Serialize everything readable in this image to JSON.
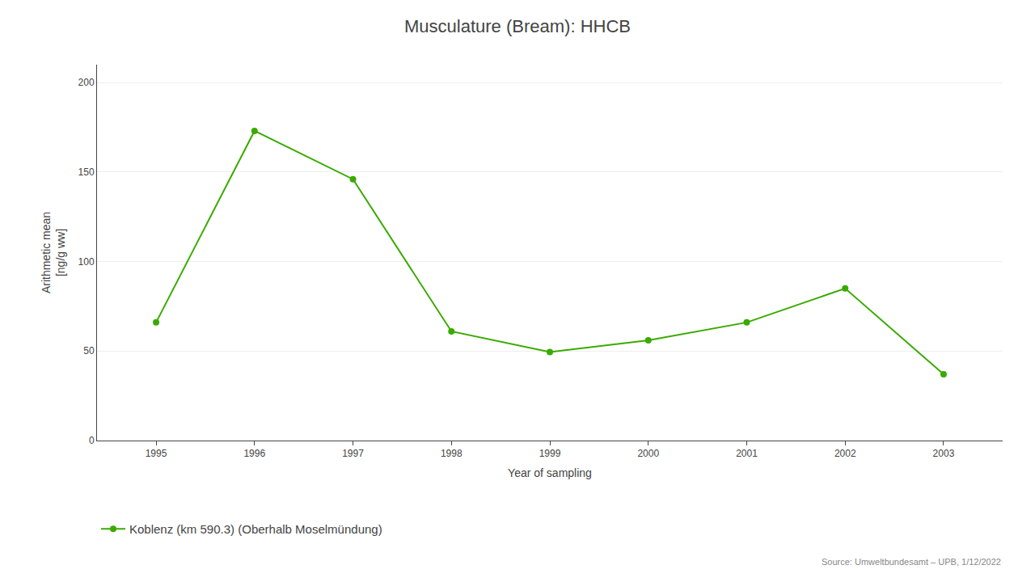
{
  "chart_data": {
    "type": "line",
    "title": "Musculature (Bream): HHCB",
    "xlabel": "Year of sampling",
    "ylabel": "Arithmetic mean\n[ng/g ww]",
    "x": [
      1995,
      1996,
      1997,
      1998,
      1999,
      2000,
      2001,
      2002,
      2003
    ],
    "series": [
      {
        "name": "Koblenz (km 590.3) (Oberhalb Moselmündung)",
        "color": "#3aaa00",
        "marker": "o",
        "values": [
          66,
          173,
          146,
          61,
          49.5,
          56,
          66,
          85,
          37
        ]
      }
    ],
    "xlim": [
      1994.4,
      2003.6
    ],
    "xticks": [
      1995,
      1996,
      1997,
      1998,
      1999,
      2000,
      2001,
      2002,
      2003
    ],
    "ylim": [
      0,
      210
    ],
    "yticks": [
      0,
      50,
      100,
      150,
      200
    ],
    "grid": "y",
    "legend": "bottom",
    "annotations": [
      "Source: Umweltbundesamt – UPB, 1/12/2022"
    ]
  }
}
